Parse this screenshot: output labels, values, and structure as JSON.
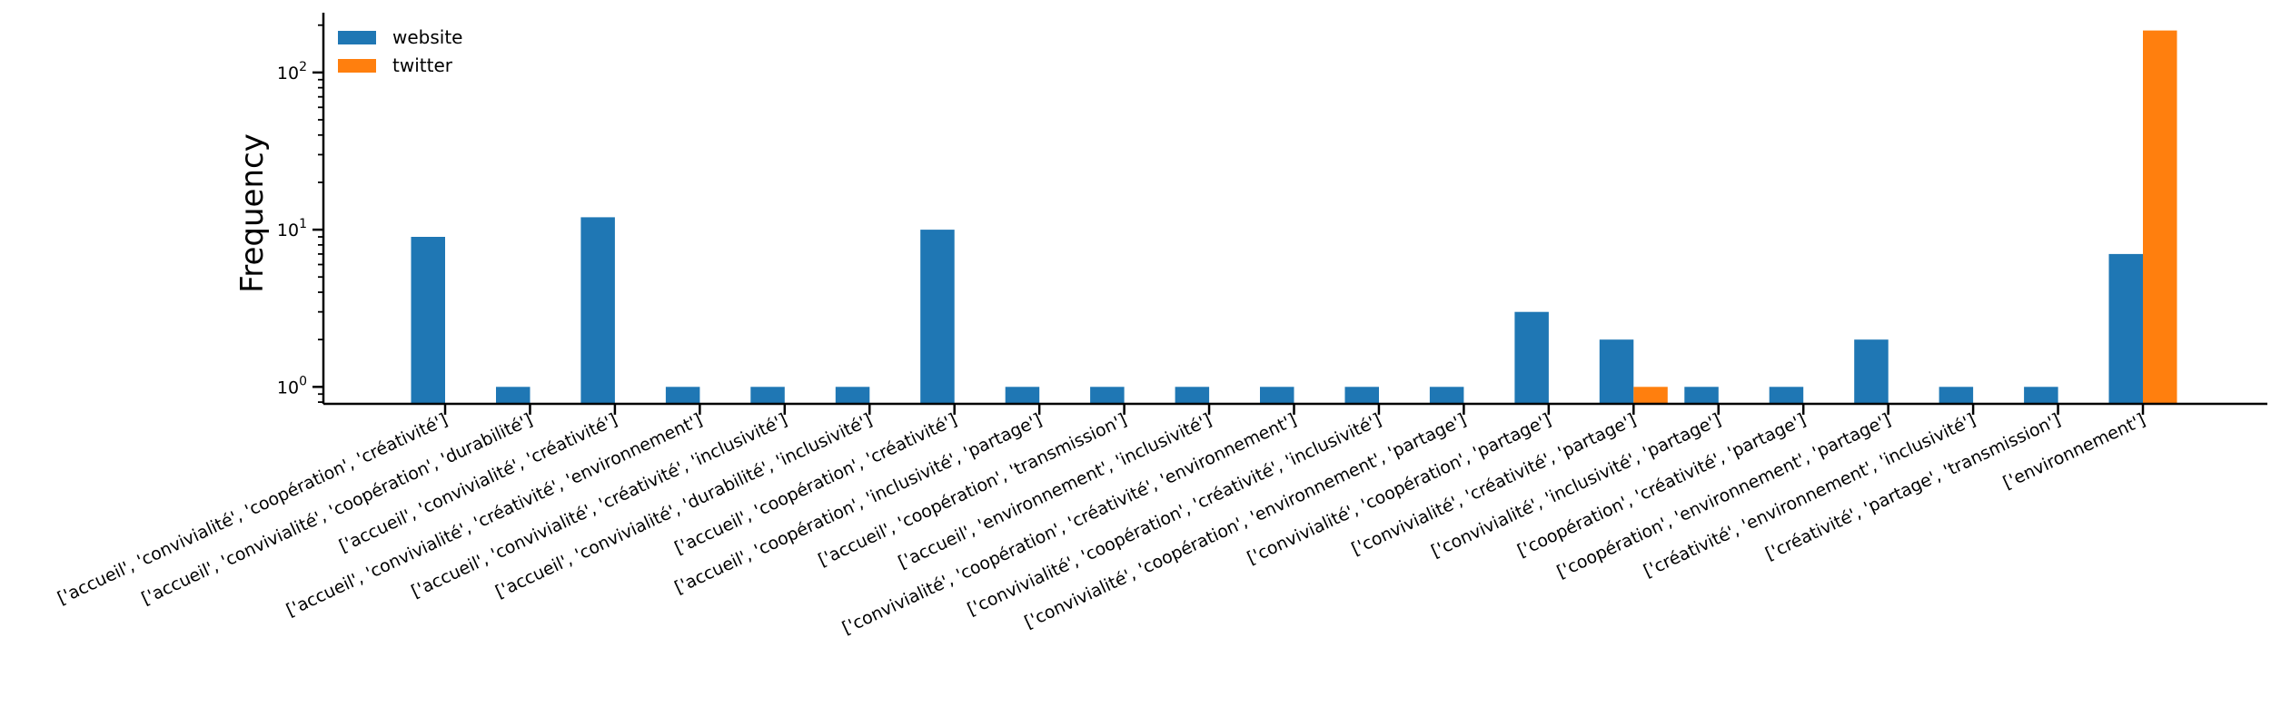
{
  "chart_data": {
    "type": "bar",
    "scale": "log",
    "ylabel": "Frequency",
    "ylim": [
      0.78,
      240
    ],
    "y_ticks": [
      {
        "value": 1,
        "label": "10",
        "exp": "0"
      },
      {
        "value": 10,
        "label": "10",
        "exp": "1"
      },
      {
        "value": 100,
        "label": "10",
        "exp": "2"
      }
    ],
    "legend": {
      "placement": "top-left",
      "entries": [
        "website",
        "twitter"
      ]
    },
    "categories": [
      "['accueil', 'convivialité', 'coopération', 'créativité']",
      "['accueil', 'convivialité', 'coopération', 'durabilité']",
      "['accueil', 'convivialité', 'créativité']",
      "['accueil', 'convivialité', 'créativité', 'environnement']",
      "['accueil', 'convivialité', 'créativité', 'inclusivité']",
      "['accueil', 'convivialité', 'durabilité', 'inclusivité']",
      "['accueil', 'coopération', 'créativité']",
      "['accueil', 'coopération', 'inclusivité', 'partage']",
      "['accueil', 'coopération', 'transmission']",
      "['accueil', 'environnement', 'inclusivité']",
      "['convivialité', 'coopération', 'créativité', 'environnement']",
      "['convivialité', 'coopération', 'créativité', 'inclusivité']",
      "['convivialité', 'coopération', 'environnement', 'partage']",
      "['convivialité', 'coopération', 'partage']",
      "['convivialité', 'créativité', 'partage']",
      "['convivialité', 'inclusivité', 'partage']",
      "['coopération', 'créativité', 'partage']",
      "['coopération', 'environnement', 'partage']",
      "['créativité', 'environnement', 'inclusivité']",
      "['créativité', 'partage', 'transmission']",
      "['environnement']"
    ],
    "series": [
      {
        "name": "website",
        "color": "#1f77b4",
        "values": [
          9,
          1,
          12,
          1,
          1,
          1,
          10,
          1,
          1,
          1,
          1,
          1,
          1,
          3,
          2,
          1,
          1,
          2,
          1,
          1,
          7
        ]
      },
      {
        "name": "twitter",
        "color": "#ff7f0e",
        "values": [
          0,
          0,
          0,
          0,
          0,
          0,
          0,
          0,
          0,
          0,
          0,
          0,
          0,
          0,
          1,
          0,
          0,
          0,
          0,
          0,
          185
        ]
      }
    ]
  }
}
